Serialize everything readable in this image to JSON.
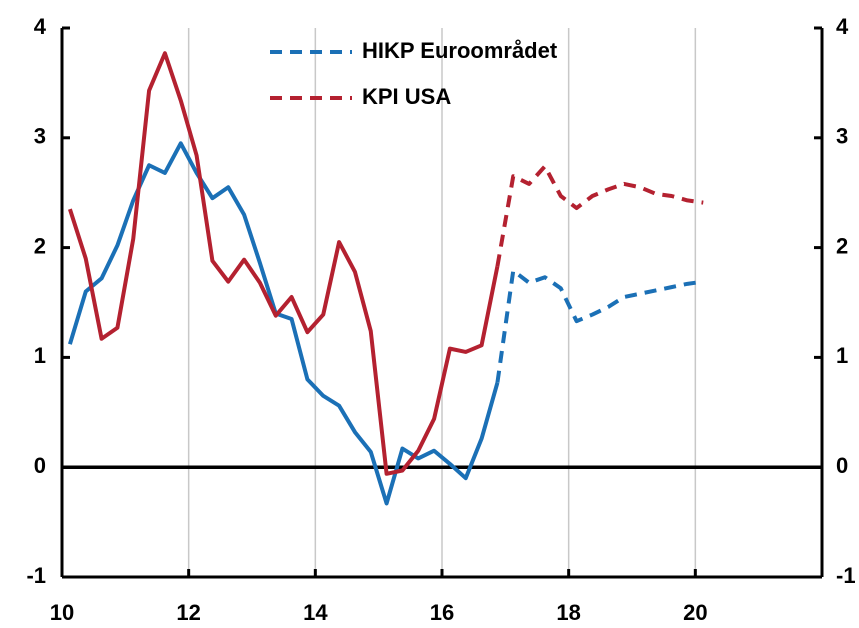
{
  "chart_data": {
    "type": "line",
    "x": [
      10.125,
      10.375,
      10.625,
      10.875,
      11.125,
      11.375,
      11.625,
      11.875,
      12.125,
      12.375,
      12.625,
      12.875,
      13.125,
      13.375,
      13.625,
      13.875,
      14.125,
      14.375,
      14.625,
      14.875,
      15.125,
      15.375,
      15.625,
      15.875,
      16.125,
      16.375,
      16.625,
      16.875,
      17.125,
      17.375,
      17.625,
      17.875,
      18.125,
      18.375,
      18.625,
      18.875,
      19.125,
      19.375,
      19.625,
      19.875,
      20.125
    ],
    "forecast_from": 16.875,
    "series": [
      {
        "name": "HIKP Euroområdet",
        "color": "#1b70b6",
        "values": [
          1.12,
          1.6,
          1.72,
          2.02,
          2.43,
          2.75,
          2.68,
          2.95,
          2.68,
          2.45,
          2.55,
          2.3,
          1.86,
          1.4,
          1.35,
          0.8,
          0.65,
          0.56,
          0.32,
          0.14,
          -0.33,
          0.17,
          0.08,
          0.15,
          0.03,
          -0.1,
          0.26,
          0.77,
          1.79,
          1.68,
          1.73,
          1.63,
          1.33,
          1.39,
          1.46,
          1.55,
          1.58,
          1.61,
          1.64,
          1.67,
          1.69
        ]
      },
      {
        "name": "KPI USA",
        "color": "#b42130",
        "values": [
          2.35,
          1.9,
          1.17,
          1.27,
          2.08,
          3.43,
          3.77,
          3.34,
          2.84,
          1.88,
          1.69,
          1.89,
          1.68,
          1.38,
          1.55,
          1.23,
          1.39,
          2.05,
          1.78,
          1.24,
          -0.06,
          -0.03,
          0.15,
          0.44,
          1.08,
          1.05,
          1.11,
          1.83,
          2.65,
          2.58,
          2.74,
          2.47,
          2.36,
          2.47,
          2.53,
          2.58,
          2.55,
          2.49,
          2.47,
          2.43,
          2.41
        ]
      }
    ],
    "xlim": [
      10,
      22
    ],
    "xticks": [
      10,
      12,
      14,
      16,
      18,
      20
    ],
    "ylim": [
      -1,
      4
    ],
    "yticks": [
      -1,
      0,
      1,
      2,
      3,
      4
    ],
    "y2lim": [
      -1,
      4
    ],
    "y2ticks": [
      -1,
      0,
      1,
      2,
      3,
      4
    ],
    "grid": "x",
    "legend": "top-center"
  }
}
